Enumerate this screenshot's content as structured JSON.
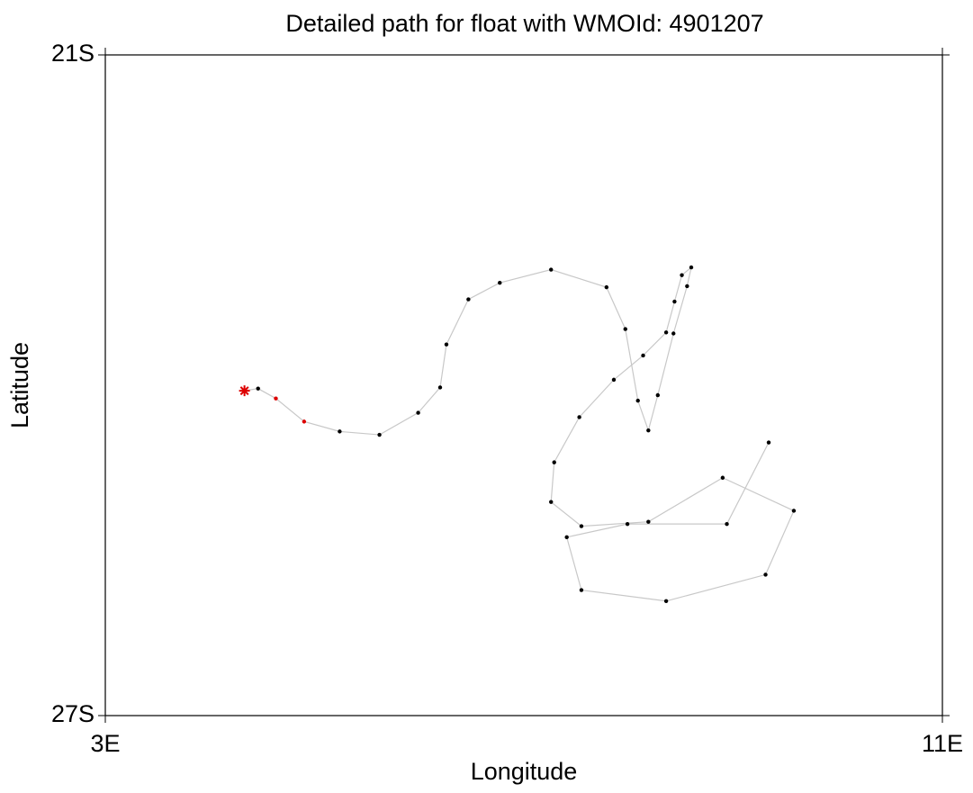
{
  "chart_data": {
    "type": "track",
    "title": "Detailed path for float with WMOId: 4901207",
    "x_label": "Longitude",
    "y_label": "Latitude",
    "xlim": [
      3,
      11
    ],
    "xticks": [
      {
        "value": 3,
        "label": "3E"
      },
      {
        "value": 11,
        "label": "11E"
      }
    ],
    "ylim": [
      -27,
      -21
    ],
    "yticks": [
      {
        "value": -27,
        "label": "27S"
      },
      {
        "value": -21,
        "label": "21S"
      }
    ],
    "line_color": "#c8c8c8",
    "first_marker": "star",
    "x": [
      4.33,
      4.46,
      4.63,
      4.9,
      5.24,
      5.62,
      5.99,
      6.2,
      6.26,
      6.47,
      6.77,
      7.26,
      7.79,
      7.97,
      8.09,
      8.19,
      8.28,
      8.43,
      8.56,
      8.6,
      8.51,
      8.44,
      8.36,
      8.14,
      7.86,
      7.53,
      7.29,
      7.26,
      7.55,
      8.19,
      8.9,
      9.58,
      9.31,
      8.36,
      7.55,
      7.41,
      7.99,
      8.94,
      9.34
    ],
    "y": [
      -24.05,
      -24.03,
      -24.12,
      -24.33,
      -24.42,
      -24.45,
      -24.25,
      -24.02,
      -23.63,
      -23.22,
      -23.07,
      -22.95,
      -23.11,
      -23.49,
      -24.14,
      -24.41,
      -24.09,
      -23.53,
      -23.1,
      -22.93,
      -23.0,
      -23.24,
      -23.52,
      -23.73,
      -23.95,
      -24.29,
      -24.7,
      -25.06,
      -25.28,
      -25.24,
      -24.84,
      -25.14,
      -25.72,
      -25.96,
      -25.86,
      -25.38,
      -25.26,
      -25.26,
      -24.52
    ],
    "point_colors": [
      "#dd0000",
      "#000000",
      "#dd0000",
      "#dd0000",
      "#000000",
      "#000000",
      "#000000",
      "#000000",
      "#000000",
      "#000000",
      "#000000",
      "#000000",
      "#000000",
      "#000000",
      "#000000",
      "#000000",
      "#000000",
      "#000000",
      "#000000",
      "#000000",
      "#000000",
      "#000000",
      "#000000",
      "#000000",
      "#000000",
      "#000000",
      "#000000",
      "#000000",
      "#000000",
      "#000000",
      "#000000",
      "#000000",
      "#000000",
      "#000000",
      "#000000",
      "#000000",
      "#000000",
      "#000000",
      "#000000"
    ]
  }
}
